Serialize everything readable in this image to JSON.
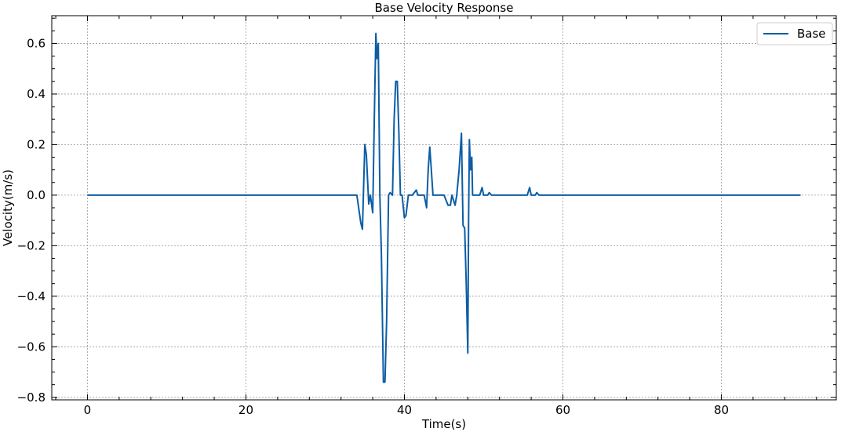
{
  "chart_data": {
    "type": "line",
    "title": "Base Velocity Response",
    "xlabel": "Time(s)",
    "ylabel": "Velocity(m/s)",
    "xlim": [
      -4.5,
      94.5
    ],
    "ylim": [
      -0.81,
      0.71
    ],
    "xticks": [
      0,
      20,
      40,
      60,
      80
    ],
    "xtick_labels": [
      "0",
      "20",
      "40",
      "60",
      "80"
    ],
    "yticks": [
      -0.8,
      -0.6,
      -0.4,
      -0.2,
      0.0,
      0.2,
      0.4,
      0.6
    ],
    "ytick_labels": [
      "−0.8",
      "−0.6",
      "−0.4",
      "−0.2",
      "0.0",
      "0.2",
      "0.4",
      "0.6"
    ],
    "grid": true,
    "legend": {
      "placement": "top-right",
      "entries": [
        "Base"
      ]
    },
    "series": [
      {
        "name": "Base",
        "color": "#0c5da5",
        "x": [
          0,
          32,
          34.0,
          34.5,
          34.7,
          35.0,
          35.2,
          35.5,
          35.7,
          36.0,
          36.2,
          36.4,
          36.55,
          36.7,
          36.9,
          37.1,
          37.35,
          37.55,
          37.75,
          38.0,
          38.2,
          38.5,
          38.7,
          38.9,
          39.1,
          39.3,
          39.5,
          39.7,
          40.0,
          40.2,
          40.5,
          41.0,
          41.5,
          41.7,
          42.0,
          42.5,
          42.8,
          43.0,
          43.2,
          43.4,
          43.6,
          44.0,
          45.0,
          45.5,
          45.8,
          46.0,
          46.4,
          46.6,
          46.9,
          47.2,
          47.4,
          47.6,
          47.8,
          48.0,
          48.1,
          48.2,
          48.35,
          48.5,
          48.6,
          48.8,
          49.0,
          49.5,
          49.8,
          50.0,
          50.5,
          50.7,
          51.0,
          52.0,
          55.5,
          55.8,
          56.0,
          56.5,
          56.7,
          57.0,
          90
        ],
        "y": [
          0.0,
          0.0,
          0.0,
          -0.11,
          -0.135,
          0.2,
          0.16,
          -0.035,
          0.0,
          -0.07,
          0.3,
          0.64,
          0.54,
          0.6,
          0.0,
          -0.24,
          -0.74,
          -0.74,
          -0.5,
          0.0,
          0.01,
          0.0,
          0.3,
          0.45,
          0.45,
          0.25,
          0.0,
          0.0,
          -0.09,
          -0.08,
          0.0,
          0.0,
          0.02,
          0.0,
          0.0,
          0.0,
          -0.05,
          0.1,
          0.19,
          0.1,
          0.0,
          0.0,
          0.0,
          -0.04,
          -0.04,
          0.0,
          -0.04,
          0.0,
          0.1,
          0.245,
          -0.12,
          -0.13,
          -0.35,
          -0.625,
          -0.1,
          0.22,
          0.1,
          0.15,
          0.0,
          0.0,
          0.0,
          0.0,
          0.03,
          0.0,
          0.0,
          0.01,
          0.0,
          0.0,
          0.0,
          0.03,
          0.0,
          0.0,
          0.01,
          0.0,
          0.0
        ]
      }
    ]
  }
}
